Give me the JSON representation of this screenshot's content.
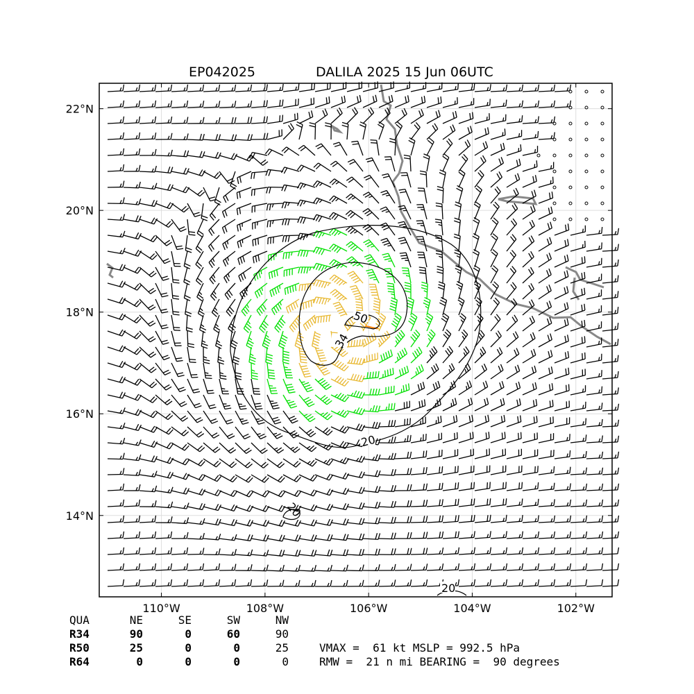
{
  "header": {
    "storm_id": "EP042025",
    "storm_title": "DALILA 2025 15 Jun 06UTC"
  },
  "map": {
    "lon_range": [
      -111.2,
      -101.3
    ],
    "lat_range": [
      12.4,
      22.5
    ],
    "lon_ticks": [
      {
        "value": -110,
        "label": "110°W"
      },
      {
        "value": -108,
        "label": "108°W"
      },
      {
        "value": -106,
        "label": "106°W"
      },
      {
        "value": -104,
        "label": "104°W"
      },
      {
        "value": -102,
        "label": "102°W"
      }
    ],
    "lat_ticks": [
      {
        "value": 14,
        "label": "14°N"
      },
      {
        "value": 16,
        "label": "16°N"
      },
      {
        "value": 18,
        "label": "18°N"
      },
      {
        "value": 20,
        "label": "20°N"
      },
      {
        "value": 22,
        "label": "22°N"
      }
    ],
    "grid": true,
    "storm_center": {
      "lon": -106.6,
      "lat": 17.7
    },
    "contours": [
      {
        "level": "20",
        "label": "20"
      },
      {
        "level": "34",
        "label": "34"
      },
      {
        "level": "50",
        "label": "50"
      },
      {
        "level": "20",
        "label": "20"
      },
      {
        "level": "20",
        "label": "20"
      }
    ],
    "colors": {
      "barb_default": "#000000",
      "barb_34kt": "#00e000",
      "barb_50kt": "#e8b830",
      "barb_64kt": "#ff8000",
      "coastline": "#888888",
      "gridline": "#dddddd"
    }
  },
  "wind_radii": {
    "columns": [
      "QUA",
      "NE",
      "SE",
      "SW",
      "NW"
    ],
    "rows": [
      {
        "label": "R34",
        "values": [
          "90",
          "0",
          "60",
          "90"
        ]
      },
      {
        "label": "R50",
        "values": [
          "25",
          "0",
          "0",
          "25"
        ]
      },
      {
        "label": "R64",
        "values": [
          "0",
          "0",
          "0",
          "0"
        ]
      }
    ]
  },
  "stats": {
    "line1": "VMAX =  61 kt MSLP = 992.5 hPa",
    "line2": "RMW =  21 n mi BEARING =  90 degrees"
  }
}
